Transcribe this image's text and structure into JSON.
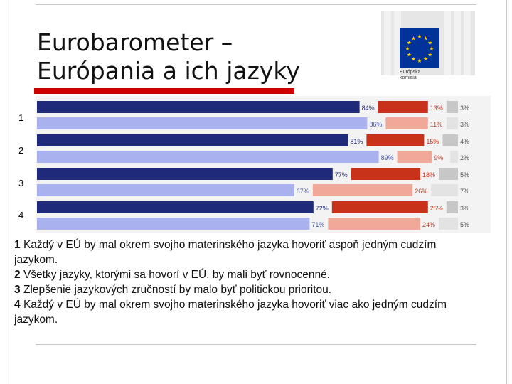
{
  "title": {
    "line1": "Eurobarometer –",
    "line2": "Európania a ich jazyky"
  },
  "logo": {
    "text": "Európska\nkomisia"
  },
  "colors": {
    "dark_blue": "#1f2a7a",
    "light_blue": "#a9b2ee",
    "dark_red": "#c8311a",
    "light_red": "#f2a898",
    "dark_gray": "#c7c7c7",
    "light_gray": "#e3e3e3",
    "accent_red": "#cc0000"
  },
  "chart_data": {
    "type": "bar",
    "orientation": "horizontal",
    "stacked": true,
    "categories": [
      "1",
      "2",
      "3",
      "4"
    ],
    "bars": [
      {
        "group": "1",
        "values": [
          84,
          13,
          3
        ],
        "labels": [
          "84%",
          "13%",
          "3%"
        ],
        "shade": "dark"
      },
      {
        "group": "1",
        "values": [
          86,
          11,
          3
        ],
        "labels": [
          "86%",
          "11%",
          "3%"
        ],
        "shade": "light"
      },
      {
        "group": "2",
        "values": [
          81,
          15,
          4
        ],
        "labels": [
          "81%",
          "15%",
          "4%"
        ],
        "shade": "dark"
      },
      {
        "group": "2",
        "values": [
          89,
          9,
          2
        ],
        "labels": [
          "89%",
          "9%",
          "2%"
        ],
        "shade": "light"
      },
      {
        "group": "3",
        "values": [
          77,
          18,
          5
        ],
        "labels": [
          "77%",
          "18%",
          "5%"
        ],
        "shade": "dark"
      },
      {
        "group": "3",
        "values": [
          67,
          26,
          7
        ],
        "labels": [
          "67%",
          "26%",
          "7%"
        ],
        "shade": "light"
      },
      {
        "group": "4",
        "values": [
          72,
          25,
          3
        ],
        "labels": [
          "72%",
          "25%",
          "3%"
        ],
        "shade": "dark"
      },
      {
        "group": "4",
        "values": [
          71,
          24,
          5
        ],
        "labels": [
          "71%",
          "24%",
          "5%"
        ],
        "shade": "light"
      }
    ],
    "xlim": [
      0,
      100
    ],
    "grid": false
  },
  "legend": [
    {
      "num": "1",
      "text": "Každý v EÚ by mal okrem svojho materinského jazyka hovoriť aspoň jedným cudzím jazykom."
    },
    {
      "num": "2",
      "text": "Všetky jazyky, ktorými sa hovorí v EÚ, by mali byť rovnocenné."
    },
    {
      "num": "3",
      "text": "Zlepšenie jazykových zručností by malo byť politickou prioritou."
    },
    {
      "num": "4",
      "text": "Každý v EÚ by mal okrem svojho materinského jazyka hovoriť viac ako jedným cudzím jazykom."
    }
  ]
}
